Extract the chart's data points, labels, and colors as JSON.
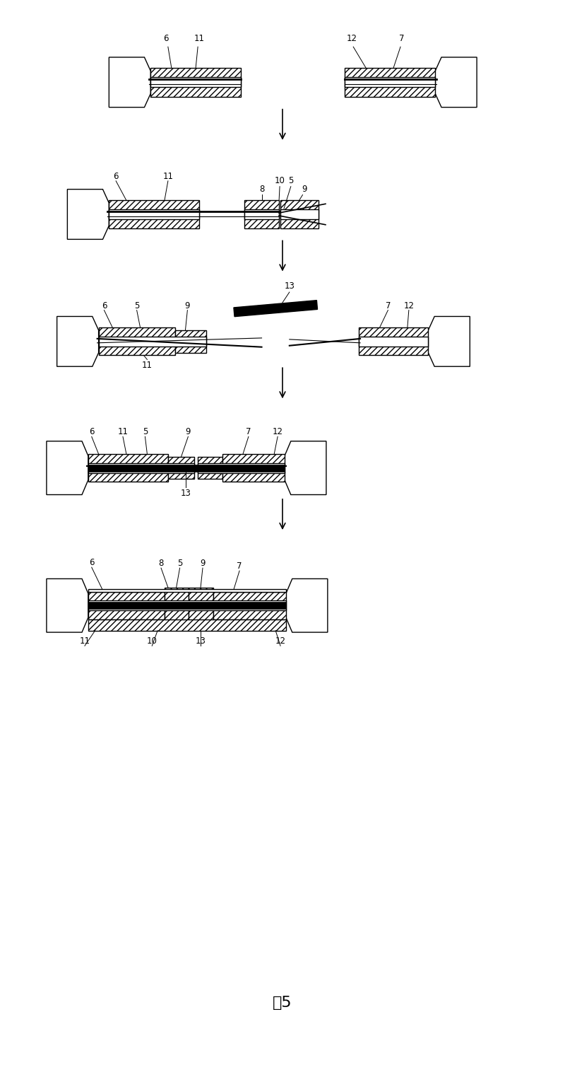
{
  "title": "图5",
  "bg_color": "#ffffff",
  "fig_width": 8.0,
  "fig_height": 15.13,
  "label_fontsize": 8.5,
  "title_fontsize": 16
}
